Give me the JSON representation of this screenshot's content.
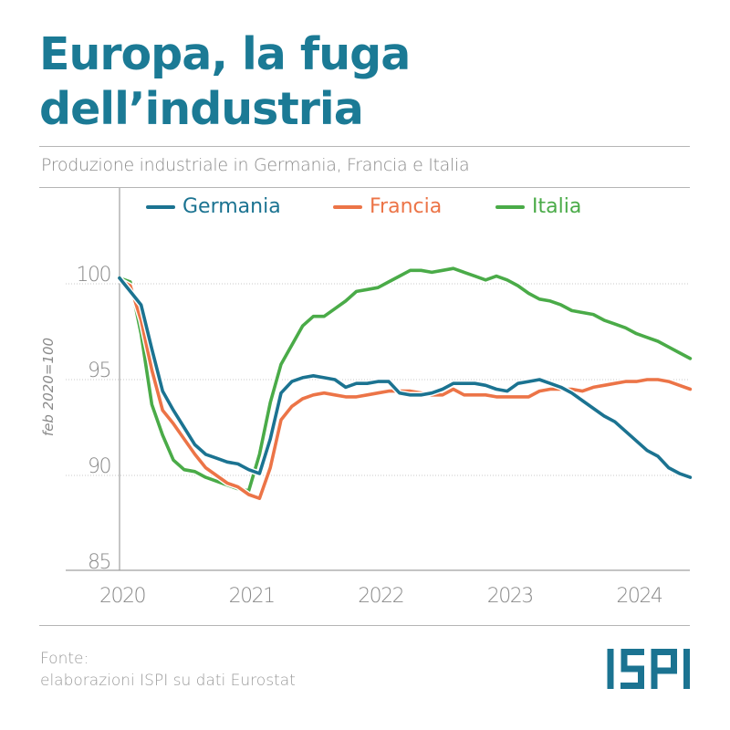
{
  "header": {
    "title_line1": "Europa, la fuga",
    "title_line2": "dell’industria",
    "subtitle": "Produzione industriale in Germania, Francia e Italia"
  },
  "footer": {
    "source_label": "Fonte:",
    "source_text": "elaborazioni ISPI su dati Eurostat",
    "logo_text": "ISPI"
  },
  "colors": {
    "title": "#1b7a95",
    "germania": "#1b7391",
    "francia": "#ec7447",
    "italia": "#4aab48",
    "axis": "#a0a0a0",
    "grid": "#c8c8c8",
    "tick_text": "#8a8a8a",
    "logo": "#1b7391"
  },
  "chart_data": {
    "type": "line",
    "title": "Produzione industriale in Germania, Francia e Italia",
    "xlabel": "",
    "ylabel": "feb 2020=100",
    "x_start": "2020-01",
    "x_frequency": "monthly",
    "x_tick_labels": [
      "2020",
      "2021",
      "2022",
      "2023",
      "2024"
    ],
    "y_tick_labels": [
      "85",
      "90",
      "95",
      "100"
    ],
    "y_ticks": [
      85,
      90,
      95,
      100
    ],
    "ylim": [
      85,
      105
    ],
    "grid": "horizontal-dotted",
    "legend_position": "top",
    "legend": [
      "Germania",
      "Francia",
      "Italia"
    ],
    "series": [
      {
        "name": "Germania",
        "color_key": "germania",
        "values": [
          100.3,
          99.6,
          98.9,
          96.6,
          94.4,
          93.4,
          92.5,
          91.6,
          91.1,
          90.9,
          90.7,
          90.6,
          90.3,
          90.1,
          91.9,
          94.3,
          94.9,
          95.1,
          95.2,
          95.1,
          95.0,
          94.6,
          94.8,
          94.8,
          94.9,
          94.9,
          94.3,
          94.2,
          94.2,
          94.3,
          94.5,
          94.8,
          94.8,
          94.8,
          94.7,
          94.5,
          94.4,
          94.8,
          94.9,
          95.0,
          94.8,
          94.6,
          94.3,
          93.9,
          93.5,
          93.1,
          92.8,
          92.3,
          91.8,
          91.3,
          91.0,
          90.4,
          90.1,
          89.9
        ]
      },
      {
        "name": "Francia",
        "color_key": "francia",
        "values": [
          100.2,
          99.9,
          98.1,
          95.5,
          93.4,
          92.7,
          91.9,
          91.1,
          90.4,
          90.0,
          89.6,
          89.4,
          89.0,
          88.8,
          90.4,
          92.9,
          93.6,
          94.0,
          94.2,
          94.3,
          94.2,
          94.1,
          94.1,
          94.2,
          94.3,
          94.4,
          94.4,
          94.4,
          94.3,
          94.2,
          94.2,
          94.5,
          94.2,
          94.2,
          94.2,
          94.1,
          94.1,
          94.1,
          94.1,
          94.4,
          94.5,
          94.5,
          94.5,
          94.4,
          94.6,
          94.7,
          94.8,
          94.9,
          94.9,
          95.0,
          95.0,
          94.9,
          94.7,
          94.5
        ]
      },
      {
        "name": "Italia",
        "color_key": "italia",
        "values": [
          100.3,
          100.1,
          97.4,
          93.7,
          92.1,
          90.8,
          90.3,
          90.2,
          89.9,
          89.7,
          89.5,
          89.3,
          89.2,
          91.1,
          93.8,
          95.8,
          96.8,
          97.8,
          98.3,
          98.3,
          98.7,
          99.1,
          99.6,
          99.7,
          99.8,
          100.1,
          100.4,
          100.7,
          100.7,
          100.6,
          100.7,
          100.8,
          100.6,
          100.4,
          100.2,
          100.4,
          100.2,
          99.9,
          99.5,
          99.2,
          99.1,
          98.9,
          98.6,
          98.5,
          98.4,
          98.1,
          97.9,
          97.7,
          97.4,
          97.2,
          97.0,
          96.7,
          96.4,
          96.1
        ]
      }
    ]
  }
}
